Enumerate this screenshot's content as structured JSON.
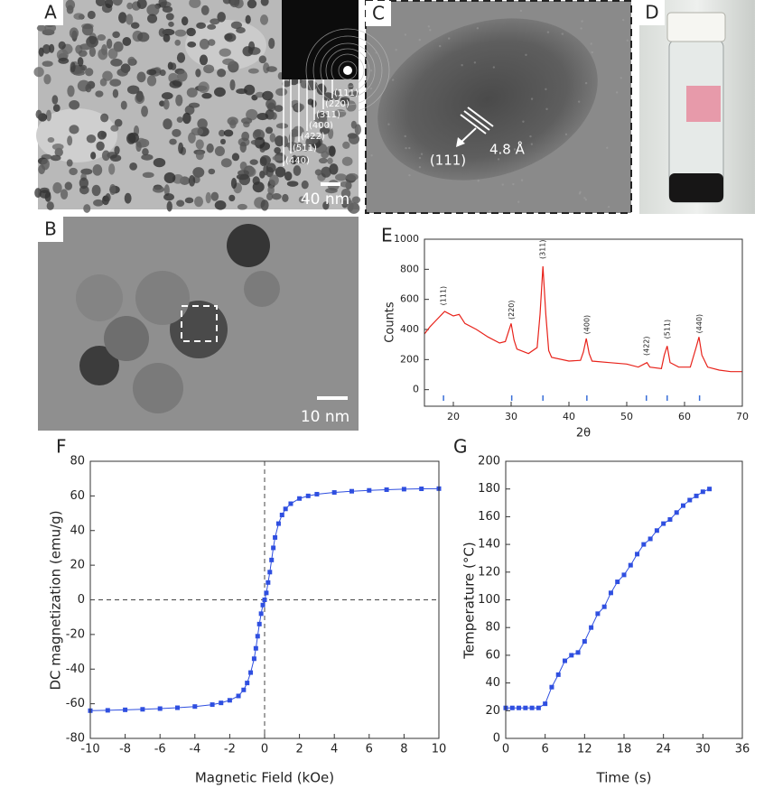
{
  "image_panels": [
    {
      "label": "A",
      "scale_bar": "40 nm",
      "inset_labels": [
        "(111)",
        "(220)",
        "(311)",
        "(400)",
        "(422)",
        "(511)",
        "(440)"
      ]
    },
    {
      "label": "B",
      "scale_bar": "10 nm"
    },
    {
      "label": "C",
      "annotations": [
        "(111)",
        "4.8 Å"
      ]
    },
    {
      "label": "D"
    }
  ],
  "chart_data": [
    {
      "type": "line",
      "panel_label": "E",
      "x_label": "2θ",
      "y_label": "Counts",
      "xlim": [
        15,
        70
      ],
      "ylim": [
        -110,
        1000
      ],
      "xticks": [
        20,
        30,
        40,
        50,
        60,
        70
      ],
      "yticks": [
        0,
        200,
        400,
        600,
        800,
        1000
      ],
      "x": [
        15,
        16,
        17,
        18,
        18.5,
        19,
        20,
        21,
        21.5,
        22,
        24,
        26,
        28,
        29,
        29.5,
        30,
        30.5,
        31,
        33,
        34.5,
        35,
        35.5,
        36,
        36.5,
        37,
        40,
        42,
        42.5,
        43,
        43.5,
        44,
        47,
        50,
        52,
        53,
        53.5,
        54,
        56,
        56.5,
        57,
        57.5,
        59,
        61,
        62,
        62.5,
        63,
        64,
        66,
        68,
        70
      ],
      "series": [
        {
          "color": "#e8221a",
          "values": [
            370,
            420,
            460,
            500,
            520,
            510,
            490,
            500,
            470,
            440,
            400,
            350,
            310,
            320,
            380,
            440,
            330,
            270,
            240,
            280,
            500,
            820,
            500,
            260,
            215,
            190,
            195,
            250,
            340,
            240,
            190,
            180,
            170,
            150,
            170,
            180,
            150,
            140,
            230,
            290,
            180,
            150,
            150,
            280,
            350,
            230,
            150,
            130,
            120,
            120
          ]
        }
      ],
      "reflections": [
        {
          "label": "(111)",
          "x": 18.3
        },
        {
          "label": "(220)",
          "x": 30.1
        },
        {
          "label": "(311)",
          "x": 35.5
        },
        {
          "label": "(400)",
          "x": 43.1
        },
        {
          "label": "(422)",
          "x": 53.4
        },
        {
          "label": "(511)",
          "x": 57.0
        },
        {
          "label": "(440)",
          "x": 62.6
        }
      ],
      "reflection_color": "#3a6fd8"
    },
    {
      "type": "line",
      "panel_label": "F",
      "x_label": "Magnetic Field (kOe)",
      "y_label": "DC magnetization (emu/g)",
      "xlim": [
        -10,
        10
      ],
      "ylim": [
        -80,
        80
      ],
      "xticks": [
        -10,
        -8,
        -6,
        -4,
        -2,
        0,
        2,
        4,
        6,
        8,
        10
      ],
      "yticks": [
        -80,
        -60,
        -40,
        -20,
        0,
        20,
        40,
        60,
        80
      ],
      "zero_lines": true,
      "markers": true,
      "x": [
        -10,
        -9,
        -8,
        -7,
        -6,
        -5,
        -4,
        -3,
        -2.5,
        -2,
        -1.5,
        -1.2,
        -1,
        -0.8,
        -0.6,
        -0.5,
        -0.4,
        -0.3,
        -0.2,
        -0.1,
        0,
        0.1,
        0.2,
        0.3,
        0.4,
        0.5,
        0.6,
        0.8,
        1,
        1.2,
        1.5,
        2,
        2.5,
        3,
        4,
        5,
        6,
        7,
        8,
        9,
        10
      ],
      "series": [
        {
          "color": "#2f4fe0",
          "values": [
            -64,
            -63.8,
            -63.5,
            -63.2,
            -62.8,
            -62.3,
            -61.6,
            -60.5,
            -59.5,
            -58,
            -55.5,
            -52,
            -48,
            -42,
            -34,
            -28,
            -21,
            -14,
            -8,
            -3,
            0,
            4,
            10,
            16,
            23,
            30,
            36,
            44,
            49,
            52.5,
            55.5,
            58.5,
            60,
            61,
            62,
            62.7,
            63.2,
            63.6,
            63.9,
            64.1,
            64.2
          ]
        }
      ]
    },
    {
      "type": "line",
      "panel_label": "G",
      "x_label": "Time (s)",
      "y_label": "Temperature (°C)",
      "xlim": [
        0,
        36
      ],
      "ylim": [
        0,
        200
      ],
      "xticks": [
        0,
        6,
        12,
        18,
        24,
        30,
        36
      ],
      "yticks": [
        0,
        20,
        40,
        60,
        80,
        100,
        120,
        140,
        160,
        180,
        200
      ],
      "markers": true,
      "x": [
        0,
        1,
        2,
        3,
        4,
        5,
        6,
        7,
        8,
        9,
        10,
        11,
        12,
        13,
        14,
        15,
        16,
        17,
        18,
        19,
        20,
        21,
        22,
        23,
        24,
        25,
        26,
        27,
        28,
        29,
        30,
        31
      ],
      "series": [
        {
          "color": "#2f4fe0",
          "values": [
            22,
            22,
            22,
            22,
            22,
            22,
            25,
            37,
            46,
            56,
            60,
            62,
            70,
            80,
            90,
            95,
            105,
            113,
            118,
            125,
            133,
            140,
            144,
            150,
            155,
            158,
            163,
            168,
            172,
            175,
            178,
            180
          ]
        }
      ]
    }
  ]
}
